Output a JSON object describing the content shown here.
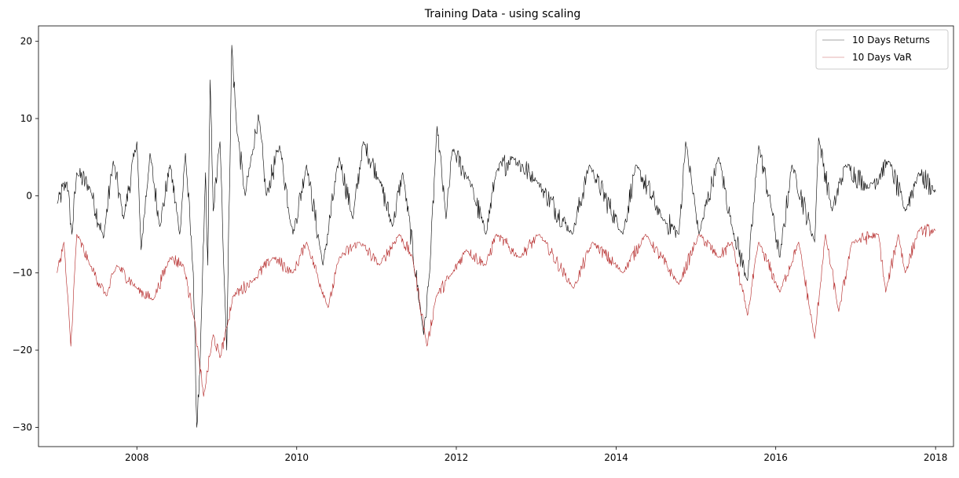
{
  "chart_data": {
    "type": "line",
    "title": "Training Data - using scaling",
    "xlabel": "",
    "ylabel": "",
    "xlim": [
      "2006-10-08",
      "2018-03-24"
    ],
    "ylim": [
      -32.5,
      22
    ],
    "x_ticks": [
      "2008",
      "2010",
      "2012",
      "2014",
      "2016",
      "2018"
    ],
    "y_ticks": [
      20,
      10,
      0,
      -10,
      -20,
      -30
    ],
    "grid": false,
    "legend": {
      "placement": "top-right"
    },
    "series": [
      {
        "name": "10 Days Returns",
        "color": "#000000",
        "keypoints": [
          [
            "2007-01-01",
            -1.0
          ],
          [
            "2007-02-15",
            1.8
          ],
          [
            "2007-03-10",
            -5.0
          ],
          [
            "2007-04-01",
            3.0
          ],
          [
            "2007-06-01",
            1.0
          ],
          [
            "2007-08-01",
            -5.5
          ],
          [
            "2007-09-15",
            4.5
          ],
          [
            "2007-11-01",
            -3.0
          ],
          [
            "2008-01-01",
            7.0
          ],
          [
            "2008-01-20",
            -7.0
          ],
          [
            "2008-03-01",
            5.5
          ],
          [
            "2008-04-15",
            -4.0
          ],
          [
            "2008-06-01",
            4.0
          ],
          [
            "2008-07-15",
            -5.0
          ],
          [
            "2008-08-10",
            5.5
          ],
          [
            "2008-09-15",
            -10.0
          ],
          [
            "2008-10-01",
            -30.0
          ],
          [
            "2008-10-15",
            -23.0
          ],
          [
            "2008-11-10",
            3.0
          ],
          [
            "2008-11-20",
            -9.0
          ],
          [
            "2008-12-01",
            15.0
          ],
          [
            "2008-12-15",
            -2.0
          ],
          [
            "2009-01-15",
            7.0
          ],
          [
            "2009-02-15",
            -20.0
          ],
          [
            "2009-03-10",
            19.5
          ],
          [
            "2009-04-01",
            9.0
          ],
          [
            "2009-05-10",
            0.0
          ],
          [
            "2009-06-15",
            6.0
          ],
          [
            "2009-07-10",
            10.5
          ],
          [
            "2009-08-15",
            0.0
          ],
          [
            "2009-10-15",
            6.5
          ],
          [
            "2009-12-15",
            -5.0
          ],
          [
            "2010-02-15",
            4.0
          ],
          [
            "2010-05-01",
            -9.0
          ],
          [
            "2010-07-15",
            5.0
          ],
          [
            "2010-09-15",
            -3.0
          ],
          [
            "2010-11-01",
            7.0
          ],
          [
            "2011-01-15",
            2.0
          ],
          [
            "2011-03-15",
            -4.0
          ],
          [
            "2011-05-01",
            3.0
          ],
          [
            "2011-08-05",
            -18.0
          ],
          [
            "2011-09-01",
            -10.0
          ],
          [
            "2011-10-05",
            9.0
          ],
          [
            "2011-11-15",
            -3.0
          ],
          [
            "2011-12-15",
            6.0
          ],
          [
            "2012-03-01",
            2.0
          ],
          [
            "2012-05-15",
            -5.0
          ],
          [
            "2012-07-01",
            3.0
          ],
          [
            "2012-09-15",
            5.0
          ],
          [
            "2013-01-01",
            2.0
          ],
          [
            "2013-06-15",
            -5.0
          ],
          [
            "2013-09-01",
            4.0
          ],
          [
            "2014-02-01",
            -5.0
          ],
          [
            "2014-04-01",
            4.0
          ],
          [
            "2014-08-01",
            -3.0
          ],
          [
            "2014-10-15",
            -5.0
          ],
          [
            "2014-11-15",
            7.0
          ],
          [
            "2015-01-15",
            -5.0
          ],
          [
            "2015-04-15",
            5.0
          ],
          [
            "2015-06-15",
            -4.0
          ],
          [
            "2015-08-25",
            -11.0
          ],
          [
            "2015-10-15",
            6.5
          ],
          [
            "2015-12-15",
            -2.0
          ],
          [
            "2016-01-20",
            -8.0
          ],
          [
            "2016-03-15",
            4.0
          ],
          [
            "2016-06-27",
            -6.0
          ],
          [
            "2016-07-15",
            7.5
          ],
          [
            "2016-09-15",
            -2.0
          ],
          [
            "2016-11-15",
            4.0
          ],
          [
            "2017-03-01",
            1.0
          ],
          [
            "2017-06-01",
            4.5
          ],
          [
            "2017-08-15",
            -2.0
          ],
          [
            "2017-10-15",
            3.0
          ],
          [
            "2018-01-01",
            0.5
          ]
        ]
      },
      {
        "name": "10 Days VaR",
        "color": "#b22222",
        "keypoints": [
          [
            "2007-01-01",
            -10.0
          ],
          [
            "2007-02-01",
            -6.0
          ],
          [
            "2007-03-05",
            -19.5
          ],
          [
            "2007-04-01",
            -5.0
          ],
          [
            "2007-06-01",
            -9.0
          ],
          [
            "2007-08-15",
            -13.0
          ],
          [
            "2007-10-01",
            -9.0
          ],
          [
            "2008-01-01",
            -12.0
          ],
          [
            "2008-03-15",
            -13.5
          ],
          [
            "2008-06-01",
            -8.0
          ],
          [
            "2008-08-01",
            -9.0
          ],
          [
            "2008-09-20",
            -16.0
          ],
          [
            "2008-10-10",
            -21.0
          ],
          [
            "2008-11-01",
            -26.0
          ],
          [
            "2008-12-15",
            -18.0
          ],
          [
            "2009-01-15",
            -21.0
          ],
          [
            "2009-02-15",
            -17.0
          ],
          [
            "2009-03-15",
            -13.0
          ],
          [
            "2009-06-15",
            -11.0
          ],
          [
            "2009-09-15",
            -8.0
          ],
          [
            "2009-12-15",
            -10.0
          ],
          [
            "2010-02-15",
            -6.0
          ],
          [
            "2010-05-25",
            -14.5
          ],
          [
            "2010-07-15",
            -8.0
          ],
          [
            "2010-10-15",
            -6.0
          ],
          [
            "2011-01-15",
            -9.0
          ],
          [
            "2011-04-15",
            -5.0
          ],
          [
            "2011-06-15",
            -8.0
          ],
          [
            "2011-08-20",
            -19.5
          ],
          [
            "2011-10-01",
            -13.0
          ],
          [
            "2011-12-15",
            -10.0
          ],
          [
            "2012-02-15",
            -7.0
          ],
          [
            "2012-05-15",
            -9.0
          ],
          [
            "2012-07-01",
            -5.0
          ],
          [
            "2012-10-15",
            -8.0
          ],
          [
            "2013-01-15",
            -5.0
          ],
          [
            "2013-06-20",
            -12.0
          ],
          [
            "2013-09-15",
            -6.0
          ],
          [
            "2014-02-01",
            -10.0
          ],
          [
            "2014-05-15",
            -5.0
          ],
          [
            "2014-10-15",
            -11.5
          ],
          [
            "2015-01-15",
            -5.0
          ],
          [
            "2015-04-15",
            -8.0
          ],
          [
            "2015-06-15",
            -6.0
          ],
          [
            "2015-08-25",
            -15.5
          ],
          [
            "2015-10-15",
            -6.0
          ],
          [
            "2016-01-20",
            -12.5
          ],
          [
            "2016-04-15",
            -6.0
          ],
          [
            "2016-06-27",
            -18.5
          ],
          [
            "2016-08-15",
            -5.0
          ],
          [
            "2016-10-15",
            -15.0
          ],
          [
            "2016-12-15",
            -6.0
          ],
          [
            "2017-04-15",
            -5.0
          ],
          [
            "2017-05-18",
            -12.5
          ],
          [
            "2017-07-15",
            -5.0
          ],
          [
            "2017-08-15",
            -10.0
          ],
          [
            "2017-10-15",
            -4.5
          ],
          [
            "2018-01-01",
            -4.5
          ]
        ]
      }
    ]
  }
}
